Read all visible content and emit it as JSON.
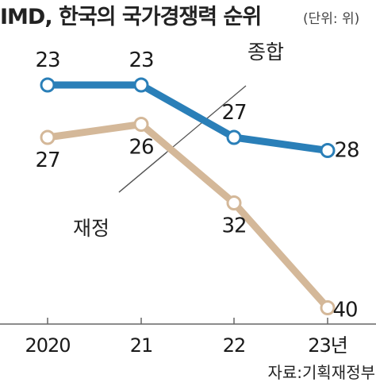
{
  "chart_data": {
    "type": "line",
    "title": "IMD, 한국의 국가경쟁력 순위",
    "unit": "(단위: 위)",
    "categories": [
      "2020",
      "21",
      "22",
      "23년"
    ],
    "series": [
      {
        "name": "종합",
        "values": [
          23,
          23,
          27,
          28
        ],
        "color": "#2a7fb8"
      },
      {
        "name": "재정",
        "values": [
          27,
          26,
          32,
          40
        ],
        "color": "#d4b899"
      }
    ],
    "y_axis": "rank, inverted (smaller rank at top)",
    "grid": false,
    "source": "자료:기획재정부"
  }
}
